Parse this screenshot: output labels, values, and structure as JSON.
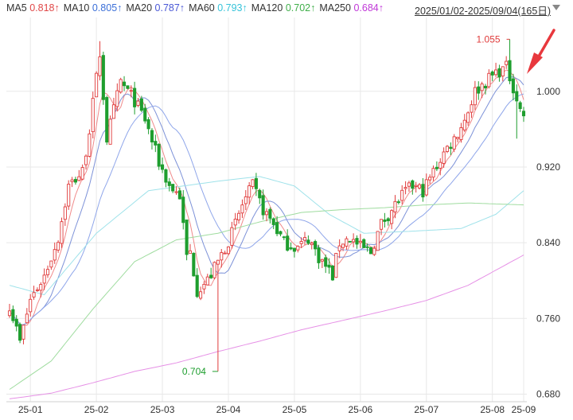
{
  "legend": [
    {
      "label": "MA5",
      "value": "0.818↑",
      "color": "#e04848"
    },
    {
      "label": "MA10",
      "value": "0.805↑",
      "color": "#3b6fd8"
    },
    {
      "label": "MA20",
      "value": "0.787↑",
      "color": "#4a58d6"
    },
    {
      "label": "MA60",
      "value": "0.793↑",
      "color": "#36c3d9"
    },
    {
      "label": "MA120",
      "value": "0.702↑",
      "color": "#3fae49"
    },
    {
      "label": "MA250",
      "value": "0.684↑",
      "color": "#c038d8"
    }
  ],
  "date_range": "2025/01/02-2025/09/04(165日)",
  "colors": {
    "up": "#e03c3c",
    "down": "#1e9e2e",
    "grid": "#e8e8e8",
    "arrow": "#e8383d",
    "ma5": "#f08a8a",
    "ma10": "#7d92d8",
    "ma20": "#8fa6ea",
    "ma60": "#9fe2ea",
    "ma120": "#9fdc9f",
    "ma250": "#e690e6"
  },
  "chart_data": {
    "type": "candlestick",
    "ylim": [
      0.672,
      1.078
    ],
    "y_ticks": [
      "1.000",
      "0.920",
      "0.840",
      "0.760",
      "0.680"
    ],
    "x_labels": [
      "25-01",
      "25-02",
      "25-03",
      "25-04",
      "25-05",
      "25-06",
      "25-07",
      "25-08",
      "25-09"
    ],
    "annotations": [
      {
        "text": "1.055",
        "value": 1.055
      },
      {
        "text": "0.704",
        "value": 0.704
      }
    ],
    "close_anchors": [
      [
        0,
        0.775
      ],
      [
        3,
        0.735
      ],
      [
        6,
        0.78
      ],
      [
        10,
        0.805
      ],
      [
        14,
        0.845
      ],
      [
        17,
        0.9
      ],
      [
        21,
        0.915
      ],
      [
        23,
        0.96
      ],
      [
        26,
        1.04
      ],
      [
        28,
        0.95
      ],
      [
        32,
        1.01
      ],
      [
        36,
        0.99
      ],
      [
        39,
        0.97
      ],
      [
        43,
        0.925
      ],
      [
        46,
        0.9
      ],
      [
        49,
        0.89
      ],
      [
        51,
        0.825
      ],
      [
        52,
        0.83
      ],
      [
        54,
        0.79
      ],
      [
        57,
        0.8
      ],
      [
        60,
        0.82
      ],
      [
        64,
        0.85
      ],
      [
        67,
        0.88
      ],
      [
        70,
        0.9
      ],
      [
        73,
        0.875
      ],
      [
        76,
        0.86
      ],
      [
        79,
        0.84
      ],
      [
        83,
        0.835
      ],
      [
        86,
        0.845
      ],
      [
        89,
        0.825
      ],
      [
        91,
        0.815
      ],
      [
        93,
        0.805
      ],
      [
        95,
        0.84
      ],
      [
        98,
        0.845
      ],
      [
        101,
        0.835
      ],
      [
        104,
        0.83
      ],
      [
        107,
        0.86
      ],
      [
        110,
        0.875
      ],
      [
        113,
        0.89
      ],
      [
        116,
        0.9
      ],
      [
        119,
        0.895
      ],
      [
        122,
        0.915
      ],
      [
        125,
        0.935
      ],
      [
        128,
        0.95
      ],
      [
        131,
        0.97
      ],
      [
        134,
        1.0
      ],
      [
        137,
        1.01
      ],
      [
        140,
        1.02
      ],
      [
        143,
        1.025
      ],
      [
        145,
        1.005
      ],
      [
        147,
        0.98
      ],
      [
        148,
        0.975
      ]
    ],
    "extra_lows": [
      [
        10,
        0.79
      ],
      [
        60,
        0.704
      ],
      [
        146,
        0.95
      ]
    ],
    "extra_highs": [
      [
        26,
        1.053
      ],
      [
        144,
        1.055
      ]
    ],
    "ma_last": {
      "ma60": [
        [
          0,
          0.795
        ],
        [
          10,
          0.785
        ],
        [
          25,
          0.85
        ],
        [
          40,
          0.895
        ],
        [
          60,
          0.905
        ],
        [
          72,
          0.91
        ],
        [
          82,
          0.9
        ],
        [
          92,
          0.87
        ],
        [
          102,
          0.85
        ],
        [
          115,
          0.852
        ],
        [
          130,
          0.855
        ],
        [
          140,
          0.87
        ],
        [
          148,
          0.895
        ]
      ],
      "ma120": [
        [
          0,
          0.685
        ],
        [
          12,
          0.715
        ],
        [
          24,
          0.77
        ],
        [
          36,
          0.82
        ],
        [
          48,
          0.843
        ],
        [
          60,
          0.85
        ],
        [
          72,
          0.862
        ],
        [
          84,
          0.872
        ],
        [
          96,
          0.875
        ],
        [
          108,
          0.877
        ],
        [
          120,
          0.88
        ],
        [
          132,
          0.882
        ],
        [
          148,
          0.88
        ]
      ],
      "ma250": [
        [
          0,
          0.675
        ],
        [
          12,
          0.681
        ],
        [
          24,
          0.692
        ],
        [
          36,
          0.704
        ],
        [
          48,
          0.713
        ],
        [
          60,
          0.725
        ],
        [
          72,
          0.736
        ],
        [
          84,
          0.748
        ],
        [
          96,
          0.758
        ],
        [
          108,
          0.768
        ],
        [
          120,
          0.779
        ],
        [
          132,
          0.795
        ],
        [
          148,
          0.827
        ]
      ]
    }
  }
}
